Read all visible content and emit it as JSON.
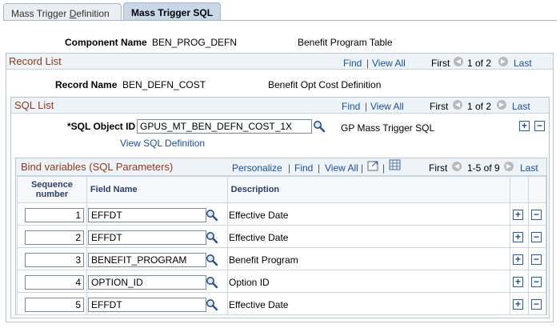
{
  "tabs": [
    {
      "label": "Mass Trigger Definition",
      "mnemonic": "D"
    },
    {
      "label": "Mass Trigger SQL"
    }
  ],
  "component": {
    "label": "Component Name",
    "value": "BEN_PROG_DEFN",
    "description": "Benefit Program Table"
  },
  "record_list": {
    "title": "Record List",
    "find": "Find",
    "view_all": "View All",
    "first": "First",
    "pager": "1 of 2",
    "last": "Last",
    "record_name_label": "Record Name",
    "record_name": "BEN_DEFN_COST",
    "record_desc": "Benefit Opt Cost Definition"
  },
  "sql_list": {
    "title": "SQL List",
    "find": "Find",
    "view_all": "View All",
    "first": "First",
    "pager": "1 of 2",
    "last": "Last",
    "sql_object_label": "*SQL Object ID",
    "sql_object_value": "GPUS_MT_BEN_DEFN_COST_1X",
    "sql_object_desc": "GP Mass Trigger SQL",
    "view_sql": "View SQL Definition"
  },
  "bind_grid": {
    "title": "Bind variables (SQL Parameters)",
    "personalize": "Personalize",
    "find": "Find",
    "view_all": "View All",
    "first": "First",
    "pager": "1-5 of 9",
    "last": "Last",
    "col_seq_line1": "Sequence",
    "col_seq_line2": "number",
    "col_field": "Field Name",
    "col_desc": "Description",
    "rows": [
      {
        "seq": "1",
        "field": "EFFDT",
        "desc": "Effective Date"
      },
      {
        "seq": "2",
        "field": "EFFDT",
        "desc": "Effective Date"
      },
      {
        "seq": "3",
        "field": "BENEFIT_PROGRAM",
        "desc": "Benefit Program"
      },
      {
        "seq": "4",
        "field": "OPTION_ID",
        "desc": "Option ID"
      },
      {
        "seq": "5",
        "field": "EFFDT",
        "desc": "Effective Date"
      }
    ]
  },
  "colors": {
    "link": "#1a4fa0",
    "header_text": "#8b3a1d",
    "border": "#b8c6d4"
  },
  "icons": {
    "lookup": "magnifier-icon",
    "add": "plus-icon",
    "remove": "minus-icon",
    "prev": "left-arrow-icon",
    "next": "right-arrow-icon"
  }
}
